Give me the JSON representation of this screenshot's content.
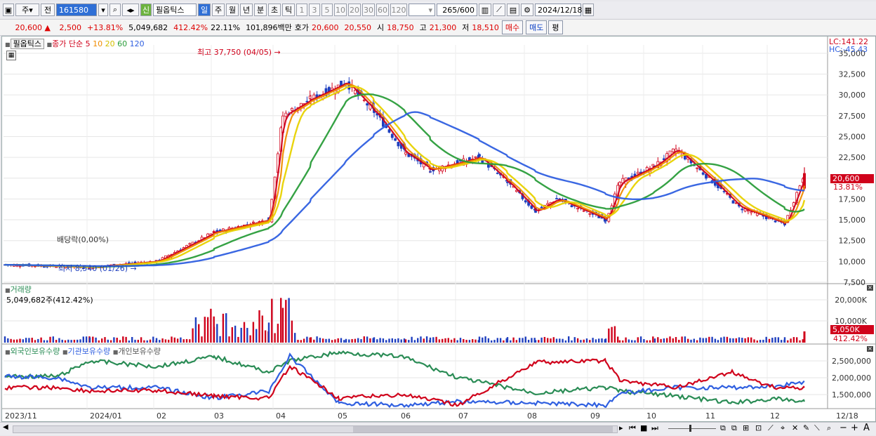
{
  "toolbar": {
    "market": "주",
    "prev_label": "전",
    "code": "161580",
    "new_badge": "신",
    "stock_name": "필옵틱스",
    "periods": [
      "일",
      "주",
      "월",
      "년",
      "분",
      "초",
      "틱"
    ],
    "period_selected": "일",
    "minute_values": [
      "1",
      "3",
      "5",
      "10",
      "20",
      "30",
      "60",
      "120"
    ],
    "count": "265",
    "count_total": "/600",
    "date": "2024/12/18"
  },
  "quote": {
    "price": "20,600",
    "direction": "▲",
    "change": "2,500",
    "change_pct": "+13.81%",
    "volume": "5,049,682",
    "volume_ratio": "412.42%",
    "turnover": "22.11%",
    "amount": "101,896백만",
    "bid_label": "호가",
    "ask_price": "20,600",
    "bid_price": "20,550",
    "open_label": "시",
    "open": "18,750",
    "high_label": "고",
    "high": "21,300",
    "low_label": "저",
    "low": "18,510",
    "buy_label": "매수",
    "sell_label": "매도",
    "eval_label": "평"
  },
  "price_panel": {
    "tab_name": "필옵틱스",
    "legend_prefix": "종가 단순",
    "ma_periods": [
      "5",
      "10",
      "20",
      "60",
      "120"
    ],
    "ma_colors": [
      "#d0021b",
      "#f08c00",
      "#e8d200",
      "#2a9d3a",
      "#2f5fe0"
    ],
    "max_label": "최고 37,750 (04/05)",
    "min_label": "최저 8,540 (01/26)",
    "dividend_label": "배당락(0,00%)",
    "lc_label": "LC:141.22",
    "hc_label": "HC:-45.43",
    "current_price_tag": "20,600",
    "current_change_tag": "13.81%",
    "y_ticks": [
      "35,000",
      "32,500",
      "30,000",
      "27,500",
      "25,000",
      "22,500",
      "20,000",
      "17,500",
      "15,000",
      "12,500",
      "10,000",
      "7,500"
    ]
  },
  "volume_panel": {
    "title": "거래량",
    "value_label": "5,049,682주(412.42%)",
    "y_ticks": [
      "20,000K",
      "10,000K"
    ],
    "current_tag": "5,050K",
    "current_pct": "412.42%"
  },
  "holdings_panel": {
    "legends": [
      "외국인보유수량",
      "기관보유수량",
      "개인보유수량"
    ],
    "colors": [
      "#2a8c55",
      "#2f5fe0",
      "#d0021b"
    ],
    "y_ticks": [
      "2,500,000",
      "2,000,000",
      "1,500,000"
    ]
  },
  "x_axis": {
    "labels": [
      "2023/11",
      "2024/01",
      "02",
      "03",
      "04",
      "05",
      "06",
      "07",
      "08",
      "09",
      "10",
      "11",
      "12",
      "12/18"
    ]
  },
  "colors": {
    "up": "#d0021b",
    "down": "#1f3fbf",
    "selected": "#2f6fd6"
  },
  "chart_data": {
    "type": "candlestick",
    "price_range": [
      7500,
      36000
    ],
    "max": {
      "value": 37750,
      "date": "04/05"
    },
    "min": {
      "value": 8540,
      "date": "01/26"
    },
    "last_close": 20600,
    "close_path": [
      {
        "period": "2023/11",
        "close": 9600
      },
      {
        "period": "2024/01",
        "close": 9300
      },
      {
        "period": "02",
        "close": 10000
      },
      {
        "period": "03",
        "close": 13500
      },
      {
        "period": "03-late",
        "close": 15000
      },
      {
        "period": "04",
        "close": 27500
      },
      {
        "period": "04-mid",
        "close": 29500
      },
      {
        "period": "05",
        "close": 31500
      },
      {
        "period": "05-late",
        "close": 28000
      },
      {
        "period": "06",
        "close": 23000
      },
      {
        "period": "06-late",
        "close": 21000
      },
      {
        "period": "07",
        "close": 22500
      },
      {
        "period": "07-late",
        "close": 19500
      },
      {
        "period": "08",
        "close": 16000
      },
      {
        "period": "08-mid",
        "close": 17500
      },
      {
        "period": "09",
        "close": 15000
      },
      {
        "period": "09-late",
        "close": 19500
      },
      {
        "period": "10",
        "close": 21500
      },
      {
        "period": "10-mid",
        "close": 23500
      },
      {
        "period": "11",
        "close": 19000
      },
      {
        "period": "11-late",
        "close": 16500
      },
      {
        "period": "12",
        "close": 14500
      },
      {
        "period": "12/18",
        "close": 20600
      }
    ]
  }
}
